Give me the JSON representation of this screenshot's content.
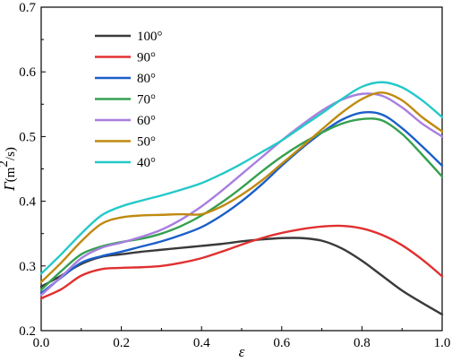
{
  "chart_data": {
    "type": "line",
    "xlabel": "ε",
    "ylabel": "Γ(m²/s)",
    "ylabel_symbol": "Γ",
    "ylabel_unit_pre": "(m",
    "ylabel_unit_sup": "2",
    "ylabel_unit_post": "/s)",
    "xlim": [
      0.0,
      1.0
    ],
    "ylim": [
      0.2,
      0.7
    ],
    "xticks": [
      "0.0",
      "0.2",
      "0.4",
      "0.6",
      "0.8",
      "1.0"
    ],
    "xtick_values": [
      0.0,
      0.2,
      0.4,
      0.6,
      0.8,
      1.0
    ],
    "yticks": [
      "0.2",
      "0.3",
      "0.4",
      "0.5",
      "0.6",
      "0.7"
    ],
    "ytick_values": [
      0.2,
      0.3,
      0.4,
      0.5,
      0.6,
      0.7
    ],
    "grid": false,
    "legend_position": "top-left",
    "x": [
      0.0,
      0.05,
      0.1,
      0.15,
      0.2,
      0.25,
      0.3,
      0.35,
      0.4,
      0.45,
      0.5,
      0.55,
      0.6,
      0.65,
      0.7,
      0.75,
      0.8,
      0.85,
      0.9,
      0.95,
      1.0
    ],
    "series": [
      {
        "name": "100°",
        "color": "#3a3a3a",
        "values": [
          0.268,
          0.285,
          0.303,
          0.314,
          0.318,
          0.322,
          0.325,
          0.328,
          0.331,
          0.334,
          0.338,
          0.341,
          0.343,
          0.343,
          0.339,
          0.327,
          0.308,
          0.285,
          0.262,
          0.243,
          0.225
        ]
      },
      {
        "name": "90°",
        "color": "#e03030",
        "values": [
          0.25,
          0.264,
          0.285,
          0.295,
          0.297,
          0.298,
          0.3,
          0.305,
          0.312,
          0.322,
          0.333,
          0.343,
          0.351,
          0.357,
          0.361,
          0.362,
          0.358,
          0.348,
          0.332,
          0.31,
          0.284
        ]
      },
      {
        "name": "80°",
        "color": "#1a5fc8",
        "values": [
          0.258,
          0.282,
          0.305,
          0.315,
          0.322,
          0.33,
          0.338,
          0.348,
          0.36,
          0.378,
          0.4,
          0.426,
          0.455,
          0.482,
          0.506,
          0.526,
          0.537,
          0.534,
          0.513,
          0.485,
          0.455
        ]
      },
      {
        "name": "70°",
        "color": "#35a050",
        "values": [
          0.263,
          0.292,
          0.318,
          0.33,
          0.337,
          0.342,
          0.35,
          0.362,
          0.378,
          0.398,
          0.421,
          0.446,
          0.469,
          0.489,
          0.506,
          0.52,
          0.527,
          0.525,
          0.504,
          0.472,
          0.438
        ]
      },
      {
        "name": "60°",
        "color": "#a87ee0",
        "values": [
          0.255,
          0.283,
          0.312,
          0.328,
          0.336,
          0.345,
          0.356,
          0.372,
          0.392,
          0.416,
          0.442,
          0.468,
          0.494,
          0.518,
          0.54,
          0.557,
          0.566,
          0.563,
          0.545,
          0.52,
          0.5
        ]
      },
      {
        "name": "50°",
        "color": "#c08a10",
        "values": [
          0.275,
          0.305,
          0.338,
          0.365,
          0.375,
          0.378,
          0.379,
          0.38,
          0.38,
          0.392,
          0.41,
          0.432,
          0.458,
          0.484,
          0.511,
          0.537,
          0.558,
          0.568,
          0.556,
          0.53,
          0.508
        ]
      },
      {
        "name": "40°",
        "color": "#25c8c8",
        "values": [
          0.288,
          0.318,
          0.35,
          0.378,
          0.392,
          0.401,
          0.409,
          0.418,
          0.428,
          0.442,
          0.458,
          0.476,
          0.494,
          0.515,
          0.536,
          0.558,
          0.577,
          0.584,
          0.576,
          0.556,
          0.53
        ]
      }
    ]
  }
}
